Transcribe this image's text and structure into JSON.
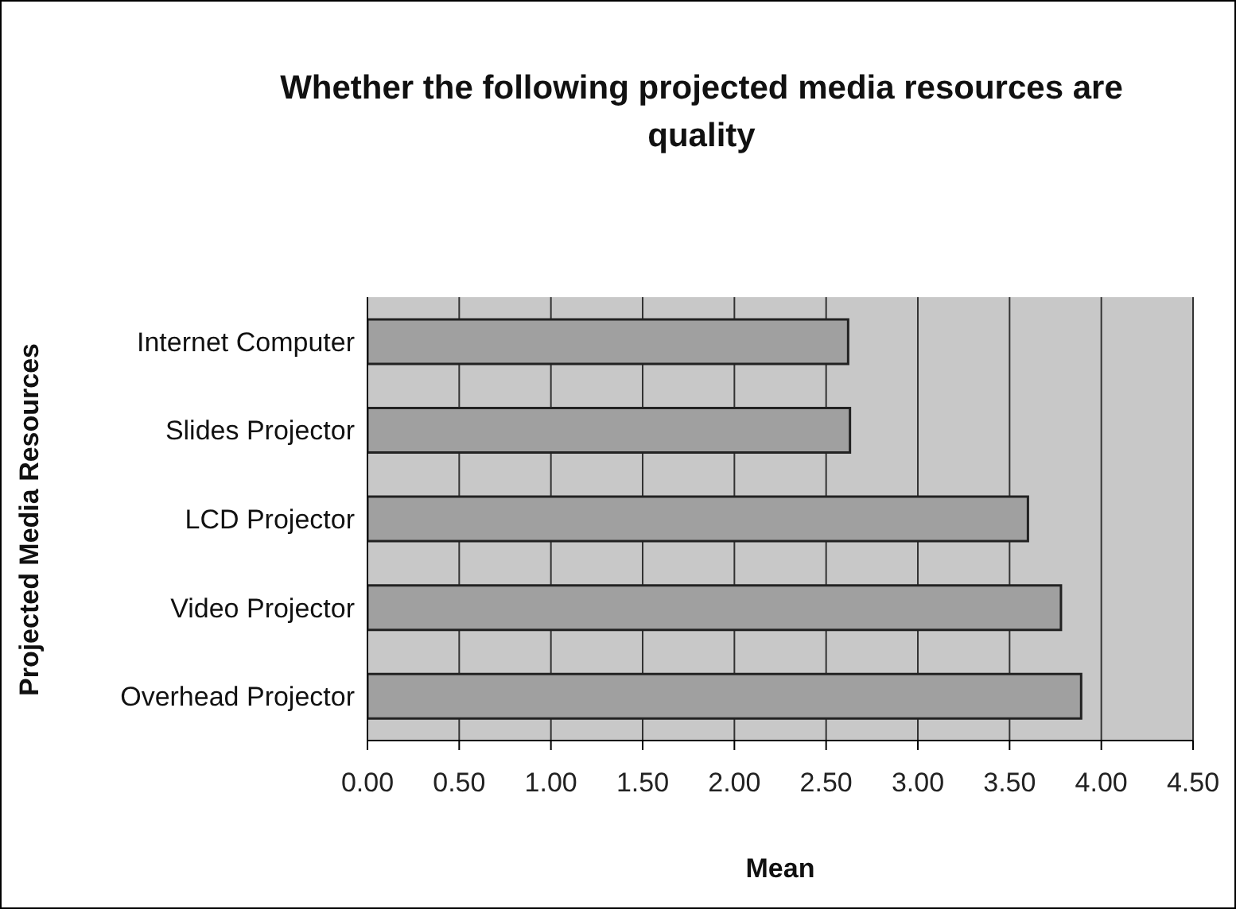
{
  "chart_data": {
    "type": "bar",
    "orientation": "horizontal",
    "title": "Whether the following projected media resources are quality",
    "xlabel": "Mean",
    "ylabel": "Projected Media Resources",
    "categories": [
      "Internet Computer",
      "Slides Projector",
      "LCD Projector",
      "Video Projector",
      "Overhead Projector"
    ],
    "values": [
      2.62,
      2.63,
      3.6,
      3.78,
      3.89
    ],
    "color": "#a0a0a0",
    "xlim": [
      0,
      4.5
    ],
    "xticks": [
      {
        "value": 0,
        "label": "0.00"
      },
      {
        "value": 0.5,
        "label": "0.50"
      },
      {
        "value": 1,
        "label": "1.00"
      },
      {
        "value": 1.5,
        "label": "1.50"
      },
      {
        "value": 2,
        "label": "2.00"
      },
      {
        "value": 2.5,
        "label": "2.50"
      },
      {
        "value": 3,
        "label": "3.00"
      },
      {
        "value": 3.5,
        "label": "3.50"
      },
      {
        "value": 4,
        "label": "4.00"
      },
      {
        "value": 4.5,
        "label": "4.50"
      }
    ],
    "grid": "x",
    "legend": false
  }
}
